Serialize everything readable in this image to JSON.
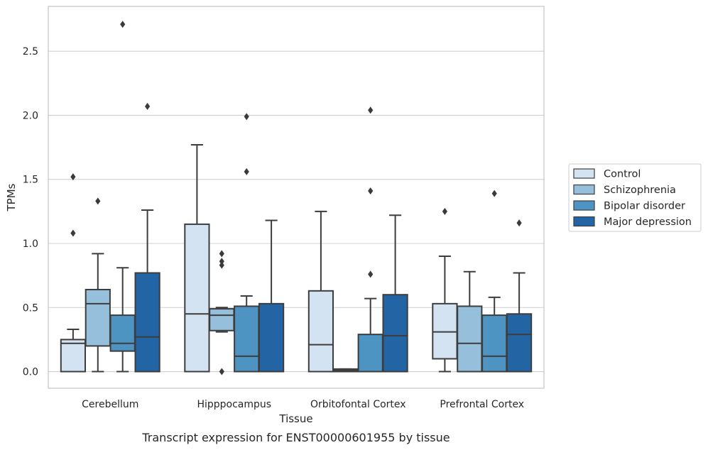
{
  "caption": "Transcript expression for ENST00000601955 by tissue",
  "colors": {
    "Control": "#d4e3f2",
    "Schizophrenia": "#95bfdb",
    "Bipolar disorder": "#4e94c3",
    "Major depression": "#2364a4",
    "edge": "#3d3d3d",
    "grid": "#d0d0d0",
    "frame": "#c8c8c8"
  },
  "chart_data": {
    "type": "box",
    "title": "",
    "xlabel": "Tissue",
    "ylabel": "TPMs",
    "ylim": [
      -0.13,
      2.85
    ],
    "yticks": [
      0.0,
      0.5,
      1.0,
      1.5,
      2.0,
      2.5
    ],
    "ytick_labels": [
      "0.0",
      "0.5",
      "1.0",
      "1.5",
      "2.0",
      "2.5"
    ],
    "grid": "horizontal",
    "legend_position": "right, outside plot",
    "categories": [
      "Cerebellum",
      "Hipppocampus",
      "Orbitofontal Cortex",
      "Prefrontal Cortex"
    ],
    "series": [
      {
        "name": "Control",
        "boxes": [
          {
            "whisker_low": 0.0,
            "q1": 0.0,
            "median": 0.22,
            "q3": 0.25,
            "whisker_high": 0.33,
            "outliers": [
              1.08,
              1.52
            ]
          },
          {
            "whisker_low": 0.0,
            "q1": 0.0,
            "median": 0.45,
            "q3": 1.15,
            "whisker_high": 1.77,
            "outliers": []
          },
          {
            "whisker_low": 0.0,
            "q1": 0.0,
            "median": 0.21,
            "q3": 0.63,
            "whisker_high": 1.25,
            "outliers": []
          },
          {
            "whisker_low": 0.0,
            "q1": 0.1,
            "median": 0.31,
            "q3": 0.53,
            "whisker_high": 0.9,
            "outliers": [
              1.25
            ]
          }
        ]
      },
      {
        "name": "Schizophrenia",
        "boxes": [
          {
            "whisker_low": 0.0,
            "q1": 0.2,
            "median": 0.53,
            "q3": 0.64,
            "whisker_high": 0.92,
            "outliers": [
              1.33
            ]
          },
          {
            "whisker_low": 0.31,
            "q1": 0.32,
            "median": 0.44,
            "q3": 0.49,
            "whisker_high": 0.5,
            "outliers": [
              0.0,
              0.83,
              0.86,
              0.92
            ]
          },
          {
            "whisker_low": 0.0,
            "q1": 0.0,
            "median": 0.01,
            "q3": 0.02,
            "whisker_high": 0.02,
            "outliers": []
          },
          {
            "whisker_low": 0.0,
            "q1": 0.0,
            "median": 0.22,
            "q3": 0.51,
            "whisker_high": 0.78,
            "outliers": []
          }
        ]
      },
      {
        "name": "Bipolar disorder",
        "boxes": [
          {
            "whisker_low": 0.0,
            "q1": 0.16,
            "median": 0.22,
            "q3": 0.44,
            "whisker_high": 0.81,
            "outliers": [
              2.71
            ]
          },
          {
            "whisker_low": 0.0,
            "q1": 0.0,
            "median": 0.12,
            "q3": 0.51,
            "whisker_high": 0.59,
            "outliers": [
              1.56,
              1.99
            ]
          },
          {
            "whisker_low": 0.0,
            "q1": 0.0,
            "median": 0.0,
            "q3": 0.29,
            "whisker_high": 0.57,
            "outliers": [
              0.76,
              1.41,
              2.04
            ]
          },
          {
            "whisker_low": 0.0,
            "q1": 0.0,
            "median": 0.12,
            "q3": 0.44,
            "whisker_high": 0.58,
            "outliers": [
              1.39
            ]
          }
        ]
      },
      {
        "name": "Major depression",
        "boxes": [
          {
            "whisker_low": 0.0,
            "q1": 0.0,
            "median": 0.27,
            "q3": 0.77,
            "whisker_high": 1.26,
            "outliers": [
              2.07
            ]
          },
          {
            "whisker_low": 0.0,
            "q1": 0.0,
            "median": 0.0,
            "q3": 0.53,
            "whisker_high": 1.18,
            "outliers": []
          },
          {
            "whisker_low": 0.0,
            "q1": 0.0,
            "median": 0.28,
            "q3": 0.6,
            "whisker_high": 1.22,
            "outliers": []
          },
          {
            "whisker_low": 0.0,
            "q1": 0.0,
            "median": 0.29,
            "q3": 0.45,
            "whisker_high": 0.77,
            "outliers": [
              1.16
            ]
          }
        ]
      }
    ]
  }
}
